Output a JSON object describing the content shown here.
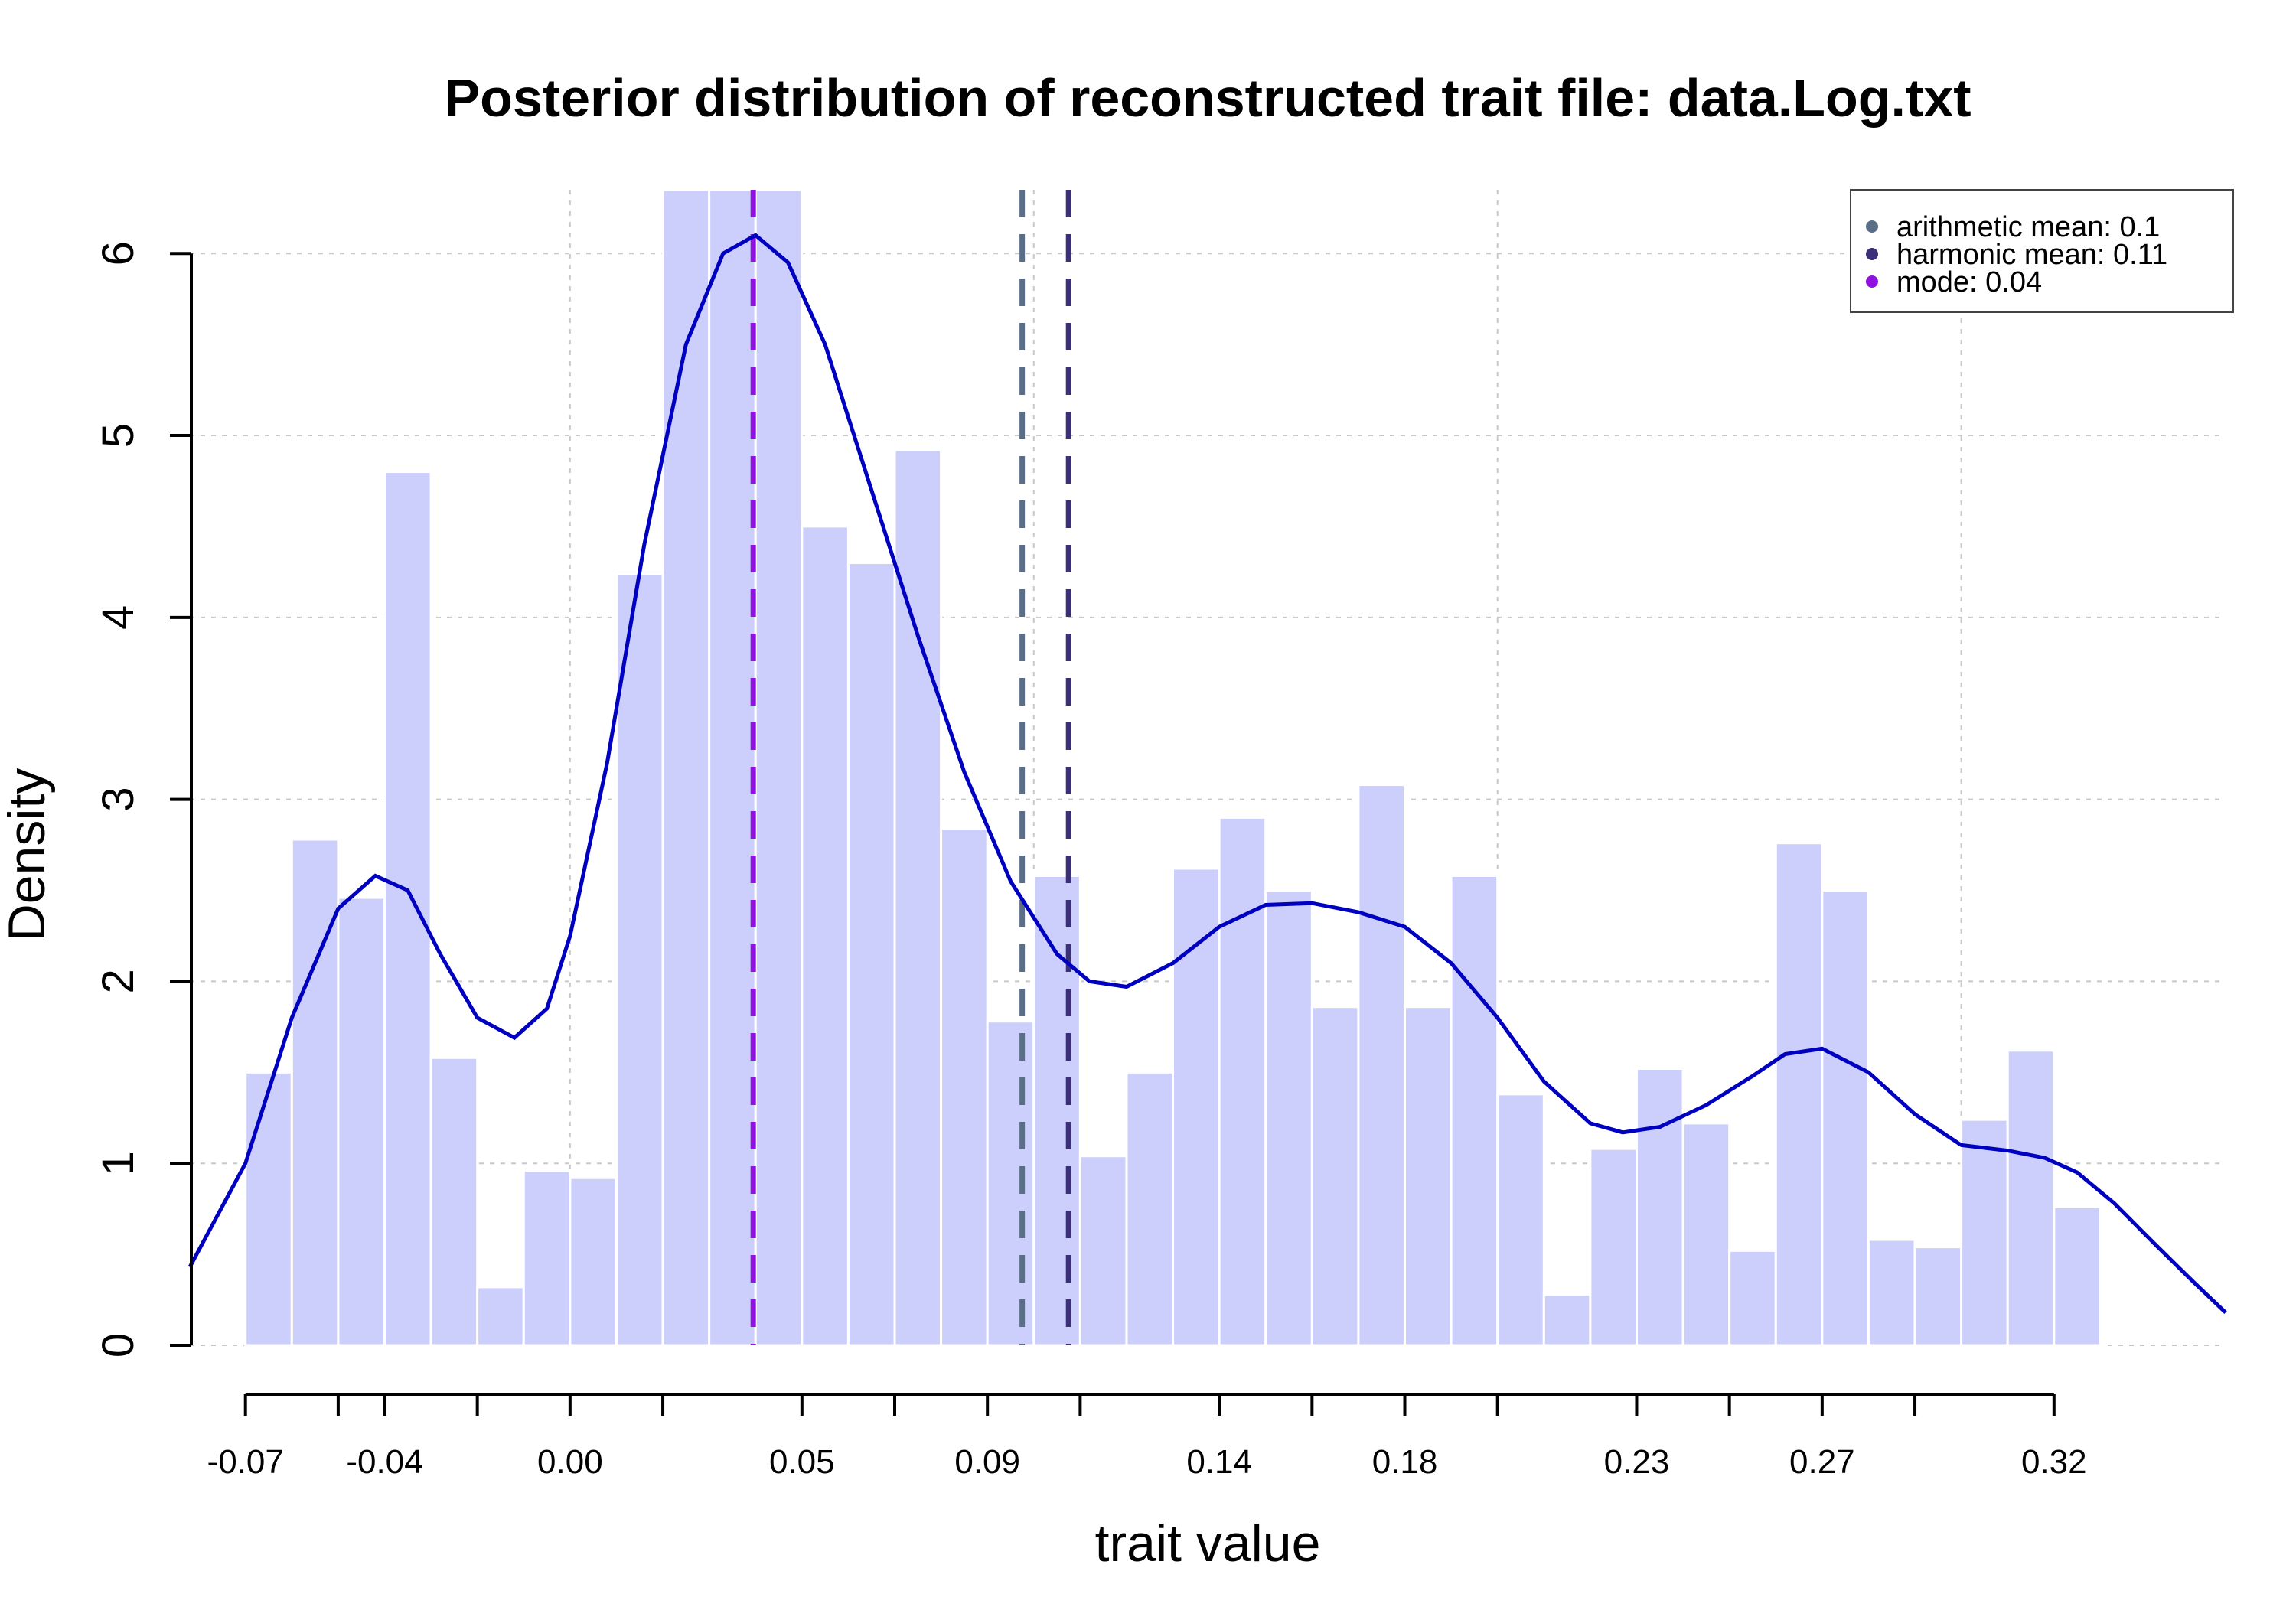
{
  "chart_data": {
    "type": "bar",
    "title": "Posterior distribution of reconstructed trait file: data.Log.txt",
    "xlabel": "trait value",
    "ylabel": "Density",
    "xlim": [
      -0.082,
      0.357
    ],
    "ylim": [
      0,
      6.35
    ],
    "grid": true,
    "legend_position": "top-right",
    "xticks": [
      {
        "value": -0.07,
        "label": "-0.07"
      },
      {
        "value": -0.04,
        "label": "-0.04"
      },
      {
        "value": 0.0,
        "label": "0.00"
      },
      {
        "value": 0.05,
        "label": "0.05"
      },
      {
        "value": 0.09,
        "label": "0.09"
      },
      {
        "value": 0.14,
        "label": "0.14"
      },
      {
        "value": 0.18,
        "label": "0.18"
      },
      {
        "value": 0.23,
        "label": "0.23"
      },
      {
        "value": 0.27,
        "label": "0.27"
      },
      {
        "value": 0.32,
        "label": "0.32"
      }
    ],
    "xminor_ticks": [
      -0.05,
      -0.02,
      0.02,
      0.07,
      0.11,
      0.16,
      0.2,
      0.25,
      0.29
    ],
    "yticks": [
      {
        "value": 0,
        "label": "0"
      },
      {
        "value": 1,
        "label": "1"
      },
      {
        "value": 2,
        "label": "2"
      },
      {
        "value": 3,
        "label": "3"
      },
      {
        "value": 4,
        "label": "4"
      },
      {
        "value": 5,
        "label": "5"
      },
      {
        "value": 6,
        "label": "6"
      }
    ],
    "histogram": {
      "x_start": -0.07,
      "bin_width": 0.01,
      "values": [
        1.5,
        2.78,
        2.46,
        4.8,
        1.58,
        0.32,
        0.96,
        0.92,
        4.24,
        6.35,
        6.35,
        6.35,
        4.5,
        4.3,
        4.92,
        2.84,
        1.78,
        2.58,
        1.04,
        1.5,
        2.62,
        2.9,
        2.5,
        1.86,
        3.08,
        1.86,
        2.58,
        1.38,
        0.28,
        1.08,
        1.52,
        1.22,
        0.52,
        2.76,
        2.5,
        0.58,
        0.54,
        1.24,
        1.62,
        0.76
      ],
      "fill": "#cccefc"
    },
    "density_curve": {
      "color": "#0000c0",
      "points": [
        [
          -0.082,
          0.43
        ],
        [
          -0.07,
          1.0
        ],
        [
          -0.06,
          1.8
        ],
        [
          -0.05,
          2.4
        ],
        [
          -0.042,
          2.58
        ],
        [
          -0.035,
          2.5
        ],
        [
          -0.028,
          2.15
        ],
        [
          -0.02,
          1.8
        ],
        [
          -0.012,
          1.69
        ],
        [
          -0.005,
          1.85
        ],
        [
          0.0,
          2.25
        ],
        [
          0.008,
          3.2
        ],
        [
          0.016,
          4.4
        ],
        [
          0.025,
          5.5
        ],
        [
          0.033,
          6.0
        ],
        [
          0.04,
          6.1
        ],
        [
          0.047,
          5.95
        ],
        [
          0.055,
          5.5
        ],
        [
          0.065,
          4.7
        ],
        [
          0.075,
          3.9
        ],
        [
          0.085,
          3.15
        ],
        [
          0.095,
          2.55
        ],
        [
          0.105,
          2.15
        ],
        [
          0.112,
          2.0
        ],
        [
          0.12,
          1.97
        ],
        [
          0.13,
          2.1
        ],
        [
          0.14,
          2.3
        ],
        [
          0.15,
          2.42
        ],
        [
          0.16,
          2.43
        ],
        [
          0.17,
          2.38
        ],
        [
          0.18,
          2.3
        ],
        [
          0.19,
          2.1
        ],
        [
          0.2,
          1.8
        ],
        [
          0.21,
          1.45
        ],
        [
          0.22,
          1.22
        ],
        [
          0.227,
          1.17
        ],
        [
          0.235,
          1.2
        ],
        [
          0.245,
          1.32
        ],
        [
          0.255,
          1.48
        ],
        [
          0.262,
          1.6
        ],
        [
          0.27,
          1.63
        ],
        [
          0.28,
          1.5
        ],
        [
          0.29,
          1.27
        ],
        [
          0.3,
          1.1
        ],
        [
          0.31,
          1.07
        ],
        [
          0.318,
          1.03
        ],
        [
          0.325,
          0.95
        ],
        [
          0.333,
          0.78
        ],
        [
          0.342,
          0.55
        ],
        [
          0.35,
          0.35
        ],
        [
          0.357,
          0.18
        ]
      ]
    },
    "vlines": [
      {
        "name": "arithmetic mean",
        "value": 0.1,
        "x": 0.0975,
        "color": "#5a6e87"
      },
      {
        "name": "harmonic mean",
        "value": 0.11,
        "x": 0.1075,
        "color": "#3a2f78"
      },
      {
        "name": "mode",
        "value": 0.04,
        "x": 0.0395,
        "color": "#9010e0"
      }
    ],
    "legend": [
      {
        "label": "arithmetic mean: 0.1",
        "color": "#5a6e87"
      },
      {
        "label": "harmonic mean: 0.11",
        "color": "#3a2f78"
      },
      {
        "label": "mode: 0.04",
        "color": "#9010e0"
      }
    ]
  }
}
